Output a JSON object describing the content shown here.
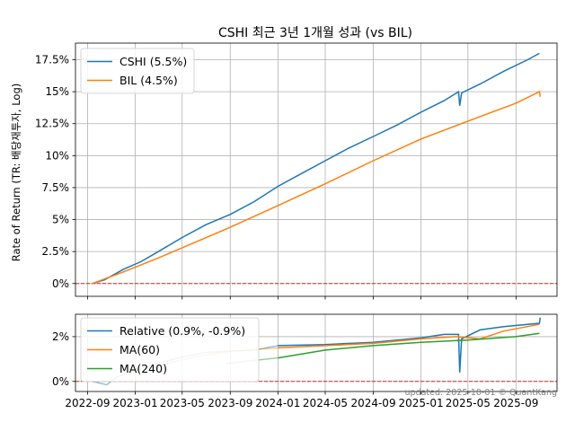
{
  "chart_data": [
    {
      "type": "line",
      "title": "CSHI 최근 3년 1개월 성과 (vs BIL)",
      "xlabel": "",
      "ylabel": "Rate of Return (TR: 배당재투자, Log)",
      "ylim": [
        -1.0,
        18.8
      ],
      "yticks": [
        0,
        2.5,
        5,
        7.5,
        10,
        12.5,
        15,
        17.5
      ],
      "ytick_labels": [
        "0%",
        "2.5%",
        "5%",
        "7.5%",
        "10%",
        "12.5%",
        "15%",
        "17.5%"
      ],
      "grid": true,
      "legend_position": "top-left",
      "reference_line": {
        "y": 0,
        "color": "#d62728",
        "style": "dashed"
      },
      "series": [
        {
          "name": "CSHI (5.5%)",
          "color": "#1f77b4",
          "points": [
            [
              "2022-09-13",
              0.0
            ],
            [
              "2022-10-15",
              0.3
            ],
            [
              "2022-12-01",
              1.1
            ],
            [
              "2023-01-15",
              1.7
            ],
            [
              "2023-03-01",
              2.5
            ],
            [
              "2023-05-01",
              3.6
            ],
            [
              "2023-07-01",
              4.6
            ],
            [
              "2023-09-01",
              5.4
            ],
            [
              "2023-11-01",
              6.4
            ],
            [
              "2024-01-01",
              7.6
            ],
            [
              "2024-03-01",
              8.6
            ],
            [
              "2024-05-01",
              9.6
            ],
            [
              "2024-07-01",
              10.6
            ],
            [
              "2024-09-01",
              11.5
            ],
            [
              "2024-11-01",
              12.4
            ],
            [
              "2025-01-01",
              13.4
            ],
            [
              "2025-03-01",
              14.3
            ],
            [
              "2025-04-07",
              15.0
            ],
            [
              "2025-04-10",
              13.9
            ],
            [
              "2025-04-15",
              14.9
            ],
            [
              "2025-06-01",
              15.6
            ],
            [
              "2025-08-01",
              16.6
            ],
            [
              "2025-10-01",
              17.5
            ],
            [
              "2025-10-31",
              18.0
            ]
          ]
        },
        {
          "name": "BIL (4.5%)",
          "color": "#ff7f0e",
          "points": [
            [
              "2022-09-13",
              0.0
            ],
            [
              "2022-12-01",
              0.9
            ],
            [
              "2023-03-01",
              2.0
            ],
            [
              "2023-06-01",
              3.2
            ],
            [
              "2023-09-01",
              4.4
            ],
            [
              "2024-01-01",
              6.1
            ],
            [
              "2024-05-01",
              7.8
            ],
            [
              "2024-09-01",
              9.6
            ],
            [
              "2025-01-01",
              11.3
            ],
            [
              "2025-05-01",
              12.7
            ],
            [
              "2025-09-01",
              14.1
            ],
            [
              "2025-10-31",
              15.0
            ],
            [
              "2025-11-02",
              14.6
            ]
          ]
        }
      ]
    },
    {
      "type": "line",
      "ylim": [
        -0.45,
        3.0
      ],
      "yticks": [
        0,
        2
      ],
      "ytick_labels": [
        "0%",
        "2%"
      ],
      "xlim": [
        "2022-08-01",
        "2025-12-15"
      ],
      "xticks": [
        "2022-09-01",
        "2023-01-01",
        "2023-05-01",
        "2023-09-01",
        "2024-01-01",
        "2024-05-01",
        "2024-09-01",
        "2025-01-01",
        "2025-05-01",
        "2025-09-01"
      ],
      "xtick_labels": [
        "2022-09",
        "2023-01",
        "2023-05",
        "2023-09",
        "2024-01",
        "2024-05",
        "2024-09",
        "2025-01",
        "2025-05",
        "2025-09"
      ],
      "grid": true,
      "legend_position": "top-left",
      "reference_line": {
        "y": 0,
        "color": "#d62728",
        "style": "dashed"
      },
      "series": [
        {
          "name": "Relative (0.9%, -0.9%)",
          "color": "#1f77b4",
          "faded_until": "2024-01-01",
          "points": [
            [
              "2022-09-13",
              0.0
            ],
            [
              "2022-10-20",
              -0.15
            ],
            [
              "2022-11-15",
              0.2
            ],
            [
              "2023-01-01",
              0.5
            ],
            [
              "2023-03-01",
              0.8
            ],
            [
              "2023-05-01",
              1.1
            ],
            [
              "2023-07-01",
              1.3
            ],
            [
              "2023-09-01",
              1.35
            ],
            [
              "2023-11-01",
              1.4
            ],
            [
              "2024-01-01",
              1.6
            ],
            [
              "2024-05-01",
              1.65
            ],
            [
              "2024-09-01",
              1.75
            ],
            [
              "2025-01-01",
              1.95
            ],
            [
              "2025-03-01",
              2.1
            ],
            [
              "2025-04-07",
              2.1
            ],
            [
              "2025-04-10",
              0.4
            ],
            [
              "2025-04-15",
              1.9
            ],
            [
              "2025-06-01",
              2.3
            ],
            [
              "2025-08-01",
              2.45
            ],
            [
              "2025-10-31",
              2.6
            ],
            [
              "2025-11-02",
              2.85
            ]
          ]
        },
        {
          "name": "MA(60)",
          "color": "#ff7f0e",
          "faded_until": "2024-01-01",
          "points": [
            [
              "2022-12-01",
              0.3
            ],
            [
              "2023-03-01",
              0.7
            ],
            [
              "2023-06-01",
              1.1
            ],
            [
              "2023-09-01",
              1.35
            ],
            [
              "2024-01-01",
              1.5
            ],
            [
              "2024-05-01",
              1.6
            ],
            [
              "2024-09-01",
              1.7
            ],
            [
              "2025-01-01",
              1.9
            ],
            [
              "2025-04-01",
              2.0
            ],
            [
              "2025-06-01",
              1.9
            ],
            [
              "2025-08-01",
              2.25
            ],
            [
              "2025-10-31",
              2.55
            ]
          ]
        },
        {
          "name": "MA(240)",
          "color": "#2ca02c",
          "faded_until": "2024-01-01",
          "points": [
            [
              "2023-08-20",
              0.8
            ],
            [
              "2024-01-01",
              1.05
            ],
            [
              "2024-05-01",
              1.4
            ],
            [
              "2024-09-01",
              1.6
            ],
            [
              "2025-01-01",
              1.75
            ],
            [
              "2025-05-01",
              1.85
            ],
            [
              "2025-09-01",
              2.0
            ],
            [
              "2025-10-31",
              2.15
            ]
          ]
        }
      ]
    }
  ],
  "footer": {
    "watermark": "updated: 2025-10-01 © QuantKang"
  }
}
